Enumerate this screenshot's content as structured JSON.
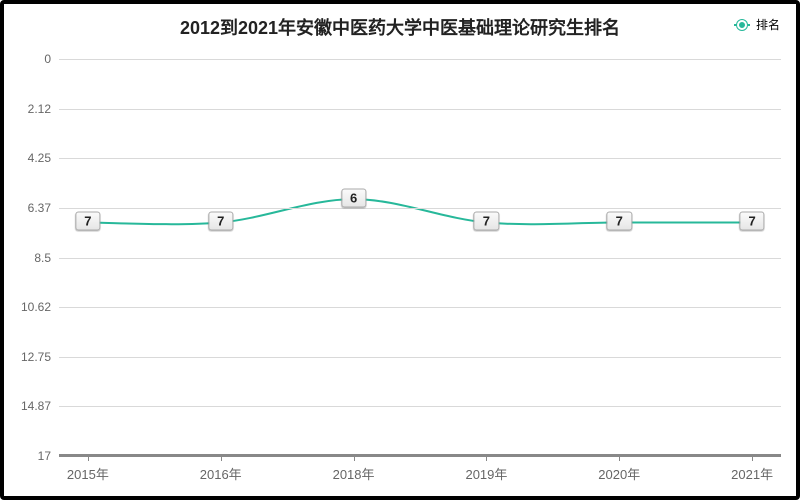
{
  "chart": {
    "type": "line",
    "title": "2012到2021年安徽中医药大学中医基础理论研究生排名",
    "title_fontsize": 18,
    "title_color": "#222222",
    "legend": {
      "label": "排名",
      "color": "#27b89a",
      "fontsize": 12,
      "position": "top-right"
    },
    "background_color": "#ffffff",
    "frame_border_color": "#000000",
    "plot": {
      "grid_color": "#d9d9d9",
      "grid_bottom_color": "#888888",
      "ylim": [
        0,
        17
      ],
      "y_inverted": true,
      "y_ticks": [
        0,
        2.12,
        4.25,
        6.37,
        8.5,
        10.62,
        12.75,
        14.87,
        17
      ],
      "y_tick_labels": [
        "0",
        "2.12",
        "4.25",
        "6.37",
        "8.5",
        "10.62",
        "12.75",
        "14.87",
        "17"
      ],
      "y_label_fontsize": 12,
      "y_label_color": "#666666",
      "x_categories": [
        "2015年",
        "2016年",
        "2018年",
        "2019年",
        "2020年",
        "2021年"
      ],
      "x_label_fontsize": 13,
      "x_label_color": "#666666"
    },
    "series": {
      "name": "排名",
      "color": "#27b89a",
      "line_width": 2,
      "marker_radius": 4,
      "marker_fill": "#ffffff",
      "values": [
        7,
        7,
        6,
        7,
        7,
        7
      ],
      "point_labels": [
        "7",
        "7",
        "6",
        "7",
        "7",
        "7"
      ],
      "point_label_fontsize": 13,
      "point_label_color": "#222222"
    }
  }
}
